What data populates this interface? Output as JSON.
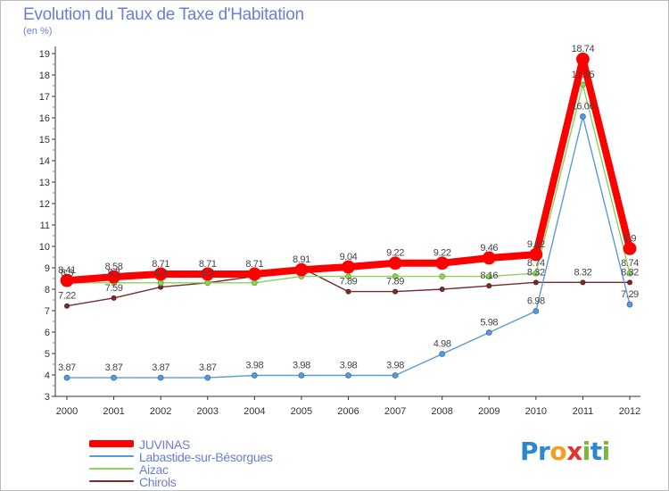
{
  "title": "Evolution du Taux de Taxe d'Habitation",
  "subtitle": "(en %)",
  "logo": {
    "text": "Proxiti",
    "letters": [
      {
        "ch": "P",
        "color": "#2e86d1"
      },
      {
        "ch": "r",
        "color": "#2e86d1"
      },
      {
        "ch": "o",
        "color": "#f0a020"
      },
      {
        "ch": "x",
        "color": "#e0352b"
      },
      {
        "ch": "i",
        "color": "#78b83a"
      },
      {
        "ch": "t",
        "color": "#2e86d1"
      },
      {
        "ch": "i",
        "color": "#78b83a"
      }
    ]
  },
  "chart_data": {
    "type": "line",
    "title": "Evolution du Taux de Taxe d'Habitation",
    "subtitle": "(en %)",
    "x": [
      "2000",
      "2001",
      "2002",
      "2003",
      "2004",
      "2005",
      "2006",
      "2007",
      "2008",
      "2009",
      "2010",
      "2011",
      "2012"
    ],
    "ylim": [
      3,
      19
    ],
    "yticks": [
      3,
      4,
      5,
      6,
      7,
      8,
      9,
      10,
      11,
      12,
      13,
      14,
      15,
      16,
      17,
      18,
      19
    ],
    "grid": false,
    "legend_position": "bottom-left",
    "series": [
      {
        "name": "Chirols",
        "color": "#7a2b2b",
        "values": [
          7.22,
          7.59,
          8.1,
          8.3,
          8.6,
          9.0,
          7.89,
          7.89,
          8.0,
          8.16,
          8.32,
          8.32,
          8.32
        ],
        "labels": [
          "7.22",
          "7.59",
          "",
          "",
          "",
          "",
          "7.89",
          "7.89",
          "",
          "8.16",
          "8.32",
          "8.32",
          "8.32"
        ]
      },
      {
        "name": "Aizac",
        "color": "#8fd05a",
        "values": [
          8.3,
          8.3,
          8.3,
          8.3,
          8.3,
          8.6,
          8.6,
          8.6,
          8.6,
          8.6,
          8.74,
          17.55,
          8.74
        ],
        "labels": [
          "8.3",
          "8.3",
          "8.3",
          "8.3",
          "",
          "",
          "",
          "",
          "",
          "",
          "8.74",
          "17.55",
          "8.74"
        ]
      },
      {
        "name": "Labastide-sur-Bésorgues",
        "color": "#5b9bd5",
        "values": [
          3.87,
          3.87,
          3.87,
          3.87,
          3.98,
          3.98,
          3.98,
          3.98,
          4.98,
          5.98,
          6.98,
          16.06,
          7.29
        ],
        "labels": [
          "3.87",
          "3.87",
          "3.87",
          "3.87",
          "3.98",
          "3.98",
          "3.98",
          "3.98",
          "4.98",
          "5.98",
          "6.98",
          "16.06",
          "7.29"
        ]
      },
      {
        "name": "JUVINAS",
        "color": "#ff0000",
        "values": [
          8.41,
          8.58,
          8.71,
          8.71,
          8.71,
          8.91,
          9.04,
          9.22,
          9.22,
          9.46,
          9.62,
          18.74,
          9.9
        ],
        "labels": [
          "8.41",
          "8.58",
          "8.71",
          "8.71",
          "8.71",
          "8.91",
          "9.04",
          "9.22",
          "9.22",
          "9.46",
          "9.62",
          "18.74",
          "9.9"
        ]
      }
    ],
    "legend": [
      "JUVINAS",
      "Labastide-sur-Bésorgues",
      "Aizac",
      "Chirols"
    ]
  }
}
